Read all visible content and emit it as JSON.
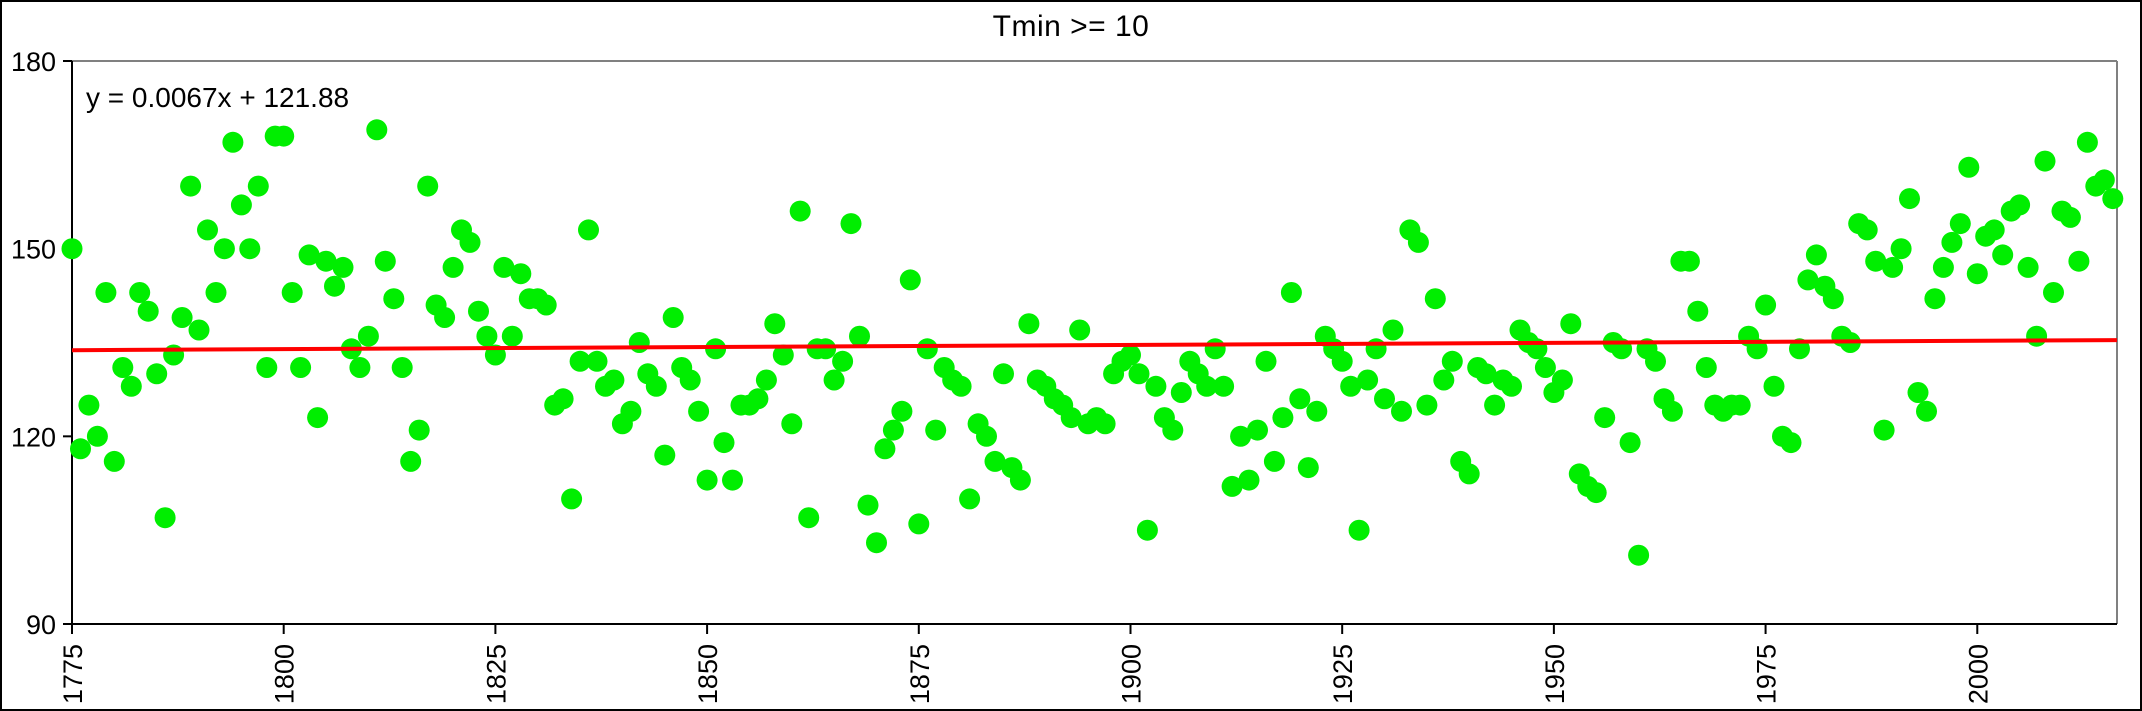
{
  "chart_data": {
    "type": "scatter",
    "title": "Tmin >= 10",
    "annotation": "y = 0.0067x + 121.88",
    "xlabel": "",
    "ylabel": "",
    "xlim": [
      1775,
      2016.5
    ],
    "ylim": [
      90,
      180
    ],
    "x_ticks": [
      1775,
      1800,
      1825,
      1850,
      1875,
      1900,
      1925,
      1950,
      1975,
      2000
    ],
    "y_ticks": [
      90,
      120,
      150,
      180
    ],
    "grid": false,
    "legend": "none",
    "marker_color": "#00EE00",
    "axis_color": "#000000",
    "plot_border_color": "#808080",
    "trendline": {
      "slope": 0.0067,
      "intercept": 121.88,
      "color": "#FF0000"
    },
    "series": [
      {
        "name": "Tmin >= 10",
        "points": [
          [
            1775,
            150
          ],
          [
            1776,
            118
          ],
          [
            1777,
            125
          ],
          [
            1778,
            120
          ],
          [
            1779,
            143
          ],
          [
            1780,
            116
          ],
          [
            1781,
            131
          ],
          [
            1782,
            128
          ],
          [
            1783,
            143
          ],
          [
            1784,
            140
          ],
          [
            1785,
            130
          ],
          [
            1786,
            107
          ],
          [
            1787,
            133
          ],
          [
            1788,
            139
          ],
          [
            1789,
            160
          ],
          [
            1790,
            137
          ],
          [
            1791,
            153
          ],
          [
            1792,
            143
          ],
          [
            1793,
            150
          ],
          [
            1794,
            167
          ],
          [
            1795,
            157
          ],
          [
            1796,
            150
          ],
          [
            1797,
            160
          ],
          [
            1798,
            131
          ],
          [
            1799,
            168
          ],
          [
            1800,
            168
          ],
          [
            1801,
            143
          ],
          [
            1802,
            131
          ],
          [
            1803,
            149
          ],
          [
            1804,
            123
          ],
          [
            1805,
            148
          ],
          [
            1806,
            144
          ],
          [
            1807,
            147
          ],
          [
            1808,
            134
          ],
          [
            1809,
            131
          ],
          [
            1810,
            136
          ],
          [
            1811,
            169
          ],
          [
            1812,
            148
          ],
          [
            1813,
            142
          ],
          [
            1814,
            131
          ],
          [
            1815,
            116
          ],
          [
            1816,
            121
          ],
          [
            1817,
            160
          ],
          [
            1818,
            141
          ],
          [
            1819,
            139
          ],
          [
            1820,
            147
          ],
          [
            1821,
            153
          ],
          [
            1822,
            151
          ],
          [
            1823,
            140
          ],
          [
            1824,
            136
          ],
          [
            1825,
            133
          ],
          [
            1826,
            147
          ],
          [
            1827,
            136
          ],
          [
            1828,
            146
          ],
          [
            1829,
            142
          ],
          [
            1830,
            142
          ],
          [
            1831,
            141
          ],
          [
            1832,
            125
          ],
          [
            1833,
            126
          ],
          [
            1834,
            110
          ],
          [
            1835,
            132
          ],
          [
            1836,
            153
          ],
          [
            1837,
            132
          ],
          [
            1838,
            128
          ],
          [
            1839,
            129
          ],
          [
            1840,
            122
          ],
          [
            1841,
            124
          ],
          [
            1842,
            135
          ],
          [
            1843,
            130
          ],
          [
            1844,
            128
          ],
          [
            1845,
            117
          ],
          [
            1846,
            139
          ],
          [
            1847,
            131
          ],
          [
            1848,
            129
          ],
          [
            1849,
            124
          ],
          [
            1850,
            113
          ],
          [
            1851,
            134
          ],
          [
            1852,
            119
          ],
          [
            1853,
            113
          ],
          [
            1854,
            125
          ],
          [
            1855,
            125
          ],
          [
            1856,
            126
          ],
          [
            1857,
            129
          ],
          [
            1858,
            138
          ],
          [
            1859,
            133
          ],
          [
            1860,
            122
          ],
          [
            1861,
            156
          ],
          [
            1862,
            107
          ],
          [
            1863,
            134
          ],
          [
            1864,
            134
          ],
          [
            1865,
            129
          ],
          [
            1866,
            132
          ],
          [
            1867,
            154
          ],
          [
            1868,
            136
          ],
          [
            1869,
            109
          ],
          [
            1870,
            103
          ],
          [
            1871,
            118
          ],
          [
            1872,
            121
          ],
          [
            1873,
            124
          ],
          [
            1874,
            145
          ],
          [
            1875,
            106
          ],
          [
            1876,
            134
          ],
          [
            1877,
            121
          ],
          [
            1878,
            131
          ],
          [
            1879,
            129
          ],
          [
            1880,
            128
          ],
          [
            1881,
            110
          ],
          [
            1882,
            122
          ],
          [
            1883,
            120
          ],
          [
            1884,
            116
          ],
          [
            1885,
            130
          ],
          [
            1886,
            115
          ],
          [
            1887,
            113
          ],
          [
            1888,
            138
          ],
          [
            1889,
            129
          ],
          [
            1890,
            128
          ],
          [
            1891,
            126
          ],
          [
            1892,
            125
          ],
          [
            1893,
            123
          ],
          [
            1894,
            137
          ],
          [
            1895,
            122
          ],
          [
            1896,
            123
          ],
          [
            1897,
            122
          ],
          [
            1898,
            130
          ],
          [
            1899,
            132
          ],
          [
            1900,
            133
          ],
          [
            1901,
            130
          ],
          [
            1902,
            105
          ],
          [
            1903,
            128
          ],
          [
            1904,
            123
          ],
          [
            1905,
            121
          ],
          [
            1906,
            127
          ],
          [
            1907,
            132
          ],
          [
            1908,
            130
          ],
          [
            1909,
            128
          ],
          [
            1910,
            134
          ],
          [
            1911,
            128
          ],
          [
            1912,
            112
          ],
          [
            1913,
            120
          ],
          [
            1914,
            113
          ],
          [
            1915,
            121
          ],
          [
            1916,
            132
          ],
          [
            1917,
            116
          ],
          [
            1918,
            123
          ],
          [
            1919,
            143
          ],
          [
            1920,
            126
          ],
          [
            1921,
            115
          ],
          [
            1922,
            124
          ],
          [
            1923,
            136
          ],
          [
            1924,
            134
          ],
          [
            1925,
            132
          ],
          [
            1926,
            128
          ],
          [
            1927,
            105
          ],
          [
            1928,
            129
          ],
          [
            1929,
            134
          ],
          [
            1930,
            126
          ],
          [
            1931,
            137
          ],
          [
            1932,
            124
          ],
          [
            1933,
            153
          ],
          [
            1934,
            151
          ],
          [
            1935,
            125
          ],
          [
            1936,
            142
          ],
          [
            1937,
            129
          ],
          [
            1938,
            132
          ],
          [
            1939,
            116
          ],
          [
            1940,
            114
          ],
          [
            1941,
            131
          ],
          [
            1942,
            130
          ],
          [
            1943,
            125
          ],
          [
            1944,
            129
          ],
          [
            1945,
            128
          ],
          [
            1946,
            137
          ],
          [
            1947,
            135
          ],
          [
            1948,
            134
          ],
          [
            1949,
            131
          ],
          [
            1950,
            127
          ],
          [
            1951,
            129
          ],
          [
            1952,
            138
          ],
          [
            1953,
            114
          ],
          [
            1954,
            112
          ],
          [
            1955,
            111
          ],
          [
            1956,
            123
          ],
          [
            1957,
            135
          ],
          [
            1958,
            134
          ],
          [
            1959,
            119
          ],
          [
            1960,
            101
          ],
          [
            1961,
            134
          ],
          [
            1962,
            132
          ],
          [
            1963,
            126
          ],
          [
            1964,
            124
          ],
          [
            1965,
            148
          ],
          [
            1966,
            148
          ],
          [
            1967,
            140
          ],
          [
            1968,
            131
          ],
          [
            1969,
            125
          ],
          [
            1970,
            124
          ],
          [
            1971,
            125
          ],
          [
            1972,
            125
          ],
          [
            1973,
            136
          ],
          [
            1974,
            134
          ],
          [
            1975,
            141
          ],
          [
            1976,
            128
          ],
          [
            1977,
            120
          ],
          [
            1978,
            119
          ],
          [
            1979,
            134
          ],
          [
            1980,
            145
          ],
          [
            1981,
            149
          ],
          [
            1982,
            144
          ],
          [
            1983,
            142
          ],
          [
            1984,
            136
          ],
          [
            1985,
            135
          ],
          [
            1986,
            154
          ],
          [
            1987,
            153
          ],
          [
            1988,
            148
          ],
          [
            1989,
            121
          ],
          [
            1990,
            147
          ],
          [
            1991,
            150
          ],
          [
            1992,
            158
          ],
          [
            1993,
            127
          ],
          [
            1994,
            124
          ],
          [
            1995,
            142
          ],
          [
            1996,
            147
          ],
          [
            1997,
            151
          ],
          [
            1998,
            154
          ],
          [
            1999,
            163
          ],
          [
            2000,
            146
          ],
          [
            2001,
            152
          ],
          [
            2002,
            153
          ],
          [
            2003,
            149
          ],
          [
            2004,
            156
          ],
          [
            2005,
            157
          ],
          [
            2006,
            147
          ],
          [
            2007,
            136
          ],
          [
            2008,
            164
          ],
          [
            2009,
            143
          ],
          [
            2010,
            156
          ],
          [
            2011,
            155
          ],
          [
            2012,
            148
          ],
          [
            2013,
            167
          ],
          [
            2014,
            160
          ],
          [
            2015,
            161
          ],
          [
            2016,
            158
          ]
        ]
      }
    ]
  }
}
